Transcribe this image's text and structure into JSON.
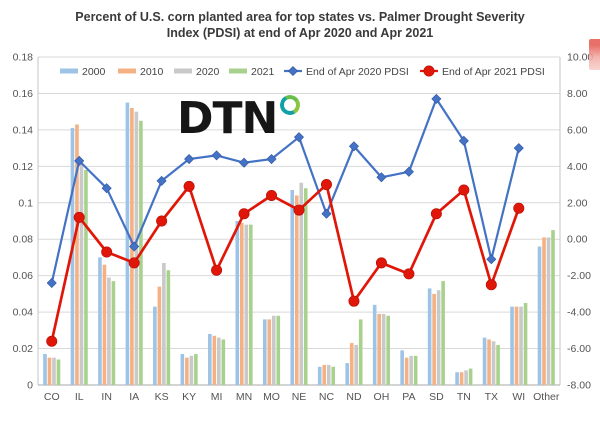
{
  "header": {
    "title_line1": "Percent of U.S. corn planted area for top states vs. Palmer Drought Severity",
    "title_line2": "Index (PDSI) at end of Apr 2020 and Apr 2021"
  },
  "watermark": {
    "text": "DTN"
  },
  "colors": {
    "bar_2000": "#9dc3e6",
    "bar_2010": "#f4b183",
    "bar_2020": "#c9c9c9",
    "bar_2021": "#a9d18e",
    "line_2020": "#4472c4",
    "line_2021": "#e01708",
    "gridline": "#d9d9d9",
    "axis_text": "#545454",
    "title_text": "#3a3a3a"
  },
  "chart_data": {
    "type": "bar",
    "subtype": "grouped-bars-with-two-lines",
    "title": "Percent of U.S. corn planted area for top states vs. Palmer Drought Severity Index (PDSI) at end of Apr 2020 and Apr 2021",
    "categories": [
      "CO",
      "IL",
      "IN",
      "IA",
      "KS",
      "KY",
      "MI",
      "MN",
      "MO",
      "NE",
      "NC",
      "ND",
      "OH",
      "PA",
      "SD",
      "TN",
      "TX",
      "WI",
      "Other"
    ],
    "bar_series": [
      {
        "name": "2000",
        "color": "#9dc3e6",
        "values": [
          0.017,
          0.141,
          0.07,
          0.155,
          0.043,
          0.017,
          0.028,
          0.09,
          0.036,
          0.107,
          0.01,
          0.012,
          0.044,
          0.019,
          0.053,
          0.007,
          0.026,
          0.043,
          0.076
        ]
      },
      {
        "name": "2010",
        "color": "#f4b183",
        "values": [
          0.015,
          0.143,
          0.066,
          0.152,
          0.054,
          0.015,
          0.027,
          0.089,
          0.036,
          0.104,
          0.011,
          0.023,
          0.039,
          0.015,
          0.05,
          0.007,
          0.025,
          0.043,
          0.081
        ]
      },
      {
        "name": "2020",
        "color": "#c9c9c9",
        "values": [
          0.015,
          0.121,
          0.059,
          0.15,
          0.067,
          0.016,
          0.026,
          0.088,
          0.038,
          0.111,
          0.011,
          0.022,
          0.039,
          0.016,
          0.052,
          0.008,
          0.024,
          0.043,
          0.081
        ]
      },
      {
        "name": "2021",
        "color": "#a9d18e",
        "values": [
          0.014,
          0.118,
          0.057,
          0.145,
          0.063,
          0.017,
          0.025,
          0.088,
          0.038,
          0.108,
          0.01,
          0.036,
          0.038,
          0.016,
          0.057,
          0.009,
          0.022,
          0.045,
          0.085
        ]
      }
    ],
    "line_series": [
      {
        "name": "End of Apr 2020 PDSI",
        "color": "#4472c4",
        "marker": "diamond",
        "values": [
          -2.4,
          4.3,
          2.8,
          -0.4,
          3.2,
          4.4,
          4.6,
          4.2,
          4.4,
          5.6,
          1.4,
          5.1,
          3.4,
          3.7,
          7.7,
          5.4,
          -1.1,
          5.0,
          null
        ]
      },
      {
        "name": "End of Apr 2021 PDSI",
        "color": "#e01708",
        "marker": "circle",
        "values": [
          -5.6,
          1.2,
          -0.7,
          -1.3,
          1.0,
          2.9,
          -1.7,
          1.4,
          2.4,
          1.6,
          3.0,
          -3.4,
          -1.3,
          -1.9,
          1.4,
          2.7,
          -2.5,
          1.7,
          null
        ]
      }
    ],
    "left_axis": {
      "min": 0,
      "max": 0.18,
      "tick_values": [
        0,
        0.02,
        0.04,
        0.06,
        0.08,
        0.1,
        0.12,
        0.14,
        0.16,
        0.18
      ],
      "tick_labels": [
        "0",
        "0.02",
        "0.04",
        "0.06",
        "0.08",
        "0.1",
        "0.12",
        "0.14",
        "0.16",
        "0.18"
      ]
    },
    "right_axis": {
      "min": -8,
      "max": 10,
      "tick_values": [
        -8,
        -6,
        -4,
        -2,
        0,
        2,
        4,
        6,
        8,
        10
      ],
      "tick_labels": [
        "-8.00",
        "-6.00",
        "-4.00",
        "-2.00",
        "0.00",
        "2.00",
        "4.00",
        "6.00",
        "8.00",
        "10.00"
      ]
    },
    "grid": "horizontal-only",
    "legend_position": "top-inside"
  }
}
